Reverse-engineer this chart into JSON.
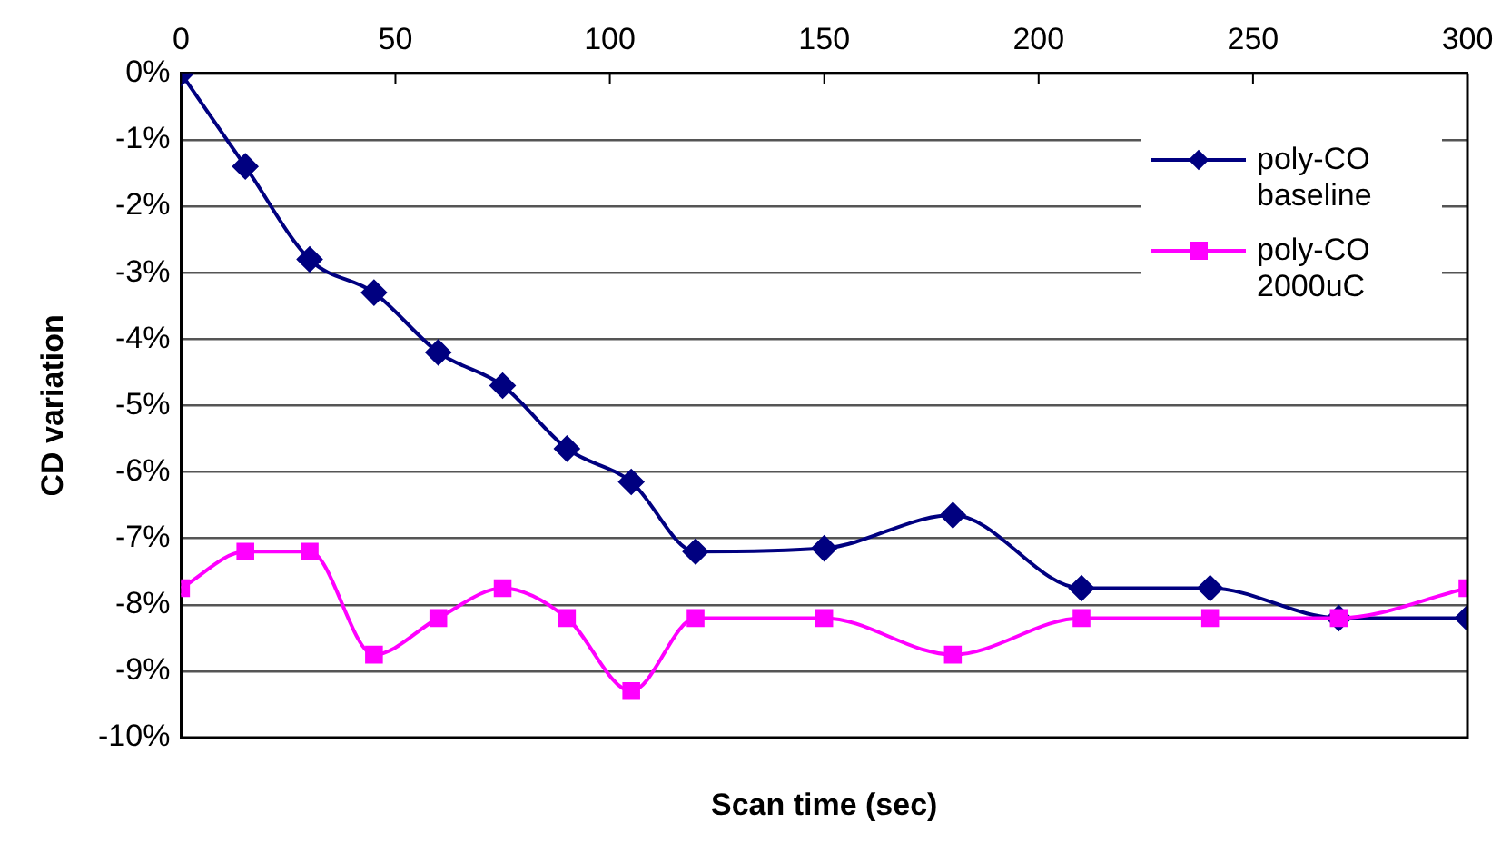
{
  "chart_data": {
    "type": "line",
    "xlabel": "Scan time (sec)",
    "ylabel": "CD variation",
    "x": [
      0,
      15,
      30,
      45,
      60,
      75,
      90,
      105,
      120,
      150,
      180,
      210,
      240,
      270,
      300
    ],
    "series": [
      {
        "name": "poly-CO baseline",
        "color": "#000080",
        "marker": "diamond",
        "values": [
          0,
          -1.4,
          -2.8,
          -3.3,
          -4.2,
          -4.7,
          -5.65,
          -6.15,
          -7.2,
          -7.15,
          -6.65,
          -7.75,
          -7.75,
          -8.2,
          -8.2
        ]
      },
      {
        "name": "poly-CO 2000uC",
        "color": "#ff00ff",
        "marker": "square",
        "values": [
          -7.75,
          -7.2,
          -7.2,
          -8.75,
          -8.2,
          -7.75,
          -8.2,
          -9.3,
          -8.2,
          -8.2,
          -8.75,
          -8.2,
          -8.2,
          -8.2,
          -7.75
        ]
      }
    ],
    "xlim": [
      0,
      300
    ],
    "xticks": [
      0,
      50,
      100,
      150,
      200,
      250,
      300
    ],
    "ylim": [
      -10,
      0
    ],
    "yticks": [
      {
        "value": 0,
        "label": "0%"
      },
      {
        "value": -1,
        "label": "-1%"
      },
      {
        "value": -2,
        "label": "-2%"
      },
      {
        "value": -3,
        "label": "-3%"
      },
      {
        "value": -4,
        "label": "-4%"
      },
      {
        "value": -5,
        "label": "-5%"
      },
      {
        "value": -6,
        "label": "-6%"
      },
      {
        "value": -7,
        "label": "-7%"
      },
      {
        "value": -8,
        "label": "-8%"
      },
      {
        "value": -9,
        "label": "-9%"
      },
      {
        "value": -10,
        "label": "-10%"
      }
    ],
    "grid": "y",
    "legend": "top right"
  }
}
